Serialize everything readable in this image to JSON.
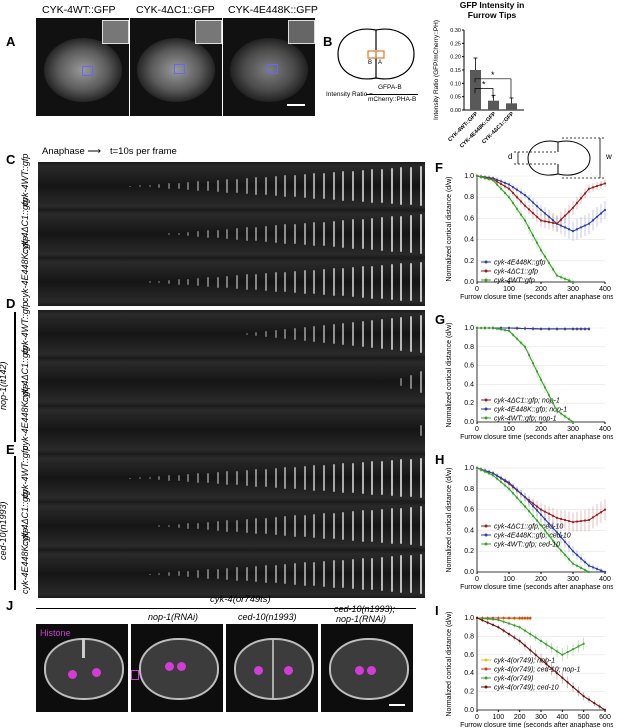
{
  "panels": {
    "A": "A",
    "B": "B",
    "C": "C",
    "D": "D",
    "E": "E",
    "F": "F",
    "G": "G",
    "H": "H",
    "I": "I",
    "J": "J"
  },
  "panelA": {
    "titles": [
      "CYK-4WT::GFP",
      "CYK-4ΔC1::GFP",
      "CYK-4E448K::GFP"
    ]
  },
  "panelB": {
    "ratio_label": "Intensity Ratio =",
    "numerator": "GFPA-B",
    "denominator": "mCherry::PHA-B",
    "region_b": "B",
    "region_a": "A",
    "bar_title": "GFP Intensity in Furrow Tips",
    "ylabel": "Intensity Ratio (GFP/mCherry::PH)",
    "sig1": "*",
    "sig2": "*",
    "categories": [
      "CYK-4WT::GFP",
      "CYK-4E448K::GFP",
      "CYK-4ΔC1::GFP"
    ]
  },
  "chart_data": [
    {
      "type": "bar",
      "title": "GFP Intensity in Furrow Tips",
      "ylabel": "Intensity Ratio (GFP/mCherry::PH)",
      "categories": [
        "CYK-4WT::GFP",
        "CYK-4E448K::GFP",
        "CYK-4ΔC1::GFP"
      ],
      "values": [
        0.15,
        0.035,
        0.025
      ],
      "errors": [
        0.045,
        0.02,
        0.02
      ],
      "ylim": [
        0,
        0.3
      ],
      "yticks": [
        "0.00",
        "0.05",
        "0.10",
        "0.15",
        "0.20",
        "0.25",
        "0.30"
      ]
    },
    {
      "type": "line",
      "panel": "F",
      "xlabel": "Furrow closure time (seconds after anaphase onset)",
      "ylabel": "Normalized cortical distance (d/w)",
      "xlim": [
        0,
        400
      ],
      "ylim": [
        0,
        1.0
      ],
      "series": [
        {
          "name": "cyk-4E448K::gfp",
          "color": "#2b3fa8",
          "x": [
            0,
            50,
            100,
            150,
            200,
            250,
            300,
            350,
            400
          ],
          "y": [
            1.0,
            0.98,
            0.92,
            0.82,
            0.68,
            0.55,
            0.48,
            0.55,
            0.68
          ]
        },
        {
          "name": "cyk-4ΔC1::gfp",
          "color": "#9b1b1b",
          "x": [
            0,
            50,
            100,
            150,
            200,
            250,
            300,
            350,
            400
          ],
          "y": [
            1.0,
            0.97,
            0.88,
            0.72,
            0.58,
            0.55,
            0.7,
            0.88,
            0.93
          ]
        },
        {
          "name": "cyk-4WT::gfp",
          "color": "#3aa02a",
          "x": [
            0,
            50,
            100,
            150,
            200,
            250,
            300
          ],
          "y": [
            1.0,
            0.96,
            0.8,
            0.58,
            0.3,
            0.06,
            0.0
          ]
        }
      ]
    },
    {
      "type": "line",
      "panel": "G",
      "xlabel": "Furrow closure time (seconds after anaphase onset)",
      "ylabel": "Normalized cortical distance (d/w)",
      "xlim": [
        0,
        400
      ],
      "ylim": [
        0,
        1.0
      ],
      "series": [
        {
          "name": "cyk-4ΔC1::gfp; nop-1",
          "color": "#9b1b1b",
          "x": [
            0,
            100,
            200,
            300,
            350
          ],
          "y": [
            1.0,
            1.0,
            0.99,
            0.99,
            0.99
          ]
        },
        {
          "name": "cyk-4E448K::gfp; nop-1",
          "color": "#2b3fa8",
          "x": [
            0,
            100,
            200,
            300,
            350
          ],
          "y": [
            1.0,
            1.0,
            0.99,
            0.99,
            0.99
          ]
        },
        {
          "name": "cyk-4WT::gfp; nop-1",
          "color": "#3aa02a",
          "x": [
            0,
            50,
            100,
            150,
            200,
            250,
            300
          ],
          "y": [
            1.0,
            1.0,
            0.97,
            0.8,
            0.45,
            0.12,
            0.0
          ]
        }
      ]
    },
    {
      "type": "line",
      "panel": "H",
      "xlabel": "Furrow closure time (seconds after anaphase onset)",
      "ylabel": "Normalized cortical distance (d/w)",
      "xlim": [
        0,
        400
      ],
      "ylim": [
        0,
        1.0
      ],
      "series": [
        {
          "name": "cyk-4ΔC1::gfp; ced-10",
          "color": "#9b1b1b",
          "x": [
            0,
            50,
            100,
            150,
            200,
            250,
            300,
            350,
            400
          ],
          "y": [
            1.0,
            0.95,
            0.85,
            0.72,
            0.6,
            0.52,
            0.48,
            0.5,
            0.6
          ]
        },
        {
          "name": "cyk-4E448K::gfp; ced-10",
          "color": "#2b3fa8",
          "x": [
            0,
            50,
            100,
            150,
            200,
            250,
            300,
            350,
            400
          ],
          "y": [
            1.0,
            0.95,
            0.86,
            0.72,
            0.55,
            0.38,
            0.2,
            0.06,
            0.0
          ]
        },
        {
          "name": "cyk-4WT::gfp; ced-10",
          "color": "#3aa02a",
          "x": [
            0,
            50,
            100,
            150,
            200,
            250,
            300,
            350
          ],
          "y": [
            1.0,
            0.93,
            0.8,
            0.63,
            0.45,
            0.25,
            0.08,
            0.0
          ]
        }
      ]
    },
    {
      "type": "line",
      "panel": "I",
      "xlabel": "Furrow closure time (seconds after anaphase onset)",
      "ylabel": "Normalized cortical distance (d/w)",
      "xlim": [
        0,
        600
      ],
      "ylim": [
        0,
        1.0
      ],
      "series": [
        {
          "name": "cyk-4(or749); nop-1",
          "color": "#d7c51e",
          "x": [
            0,
            100,
            200,
            250
          ],
          "y": [
            1.0,
            1.0,
            0.99,
            0.99
          ]
        },
        {
          "name": "cyk-4(or749); ced-10; nop-1",
          "color": "#d23a1f",
          "x": [
            0,
            100,
            200,
            250
          ],
          "y": [
            1.0,
            1.0,
            1.0,
            1.0
          ]
        },
        {
          "name": "cyk-4(or749)",
          "color": "#3aa02a",
          "x": [
            0,
            100,
            200,
            300,
            400,
            500
          ],
          "y": [
            1.0,
            0.98,
            0.9,
            0.75,
            0.6,
            0.72
          ]
        },
        {
          "name": "cyk-4(or749); ced-10",
          "color": "#6b1010",
          "x": [
            0,
            100,
            200,
            300,
            400,
            500,
            600
          ],
          "y": [
            1.0,
            0.9,
            0.75,
            0.55,
            0.35,
            0.15,
            0.0
          ]
        }
      ]
    }
  ],
  "kymo": {
    "anaphase": "Anaphase ⟶",
    "frames": "t=10s per frame",
    "rows": [
      "cyk-4WT::gfp",
      "cyk-4ΔC1::gfp",
      "cyk-4E448K::gfp",
      "cyk-4WT::gfp",
      "cyk-4ΔC1::gfp",
      "cyk-4E448K::gfp",
      "cyk-4WT::gfp",
      "cyk-4ΔC1::gfp",
      "cyk-4E448K::gfp"
    ],
    "group_D": "nop-1(it142)",
    "group_E": "ced-10(n1993)"
  },
  "schematic": {
    "d": "d",
    "w": "w"
  },
  "panelJ": {
    "header": "cyk-4(or749ts)",
    "cols": [
      "nop-1(RNAi)",
      "ced-10(n1993)",
      "ced-10(n1993);",
      "nop-1(RNAi)"
    ],
    "histone": "Histone"
  },
  "axes": {
    "xticksF": [
      "0",
      "100",
      "200",
      "300",
      "400"
    ],
    "xticksI": [
      "0",
      "100",
      "200",
      "300",
      "400",
      "500",
      "600"
    ],
    "yticks": [
      "0.0",
      "0.2",
      "0.4",
      "0.6",
      "0.8",
      "1.0"
    ]
  }
}
